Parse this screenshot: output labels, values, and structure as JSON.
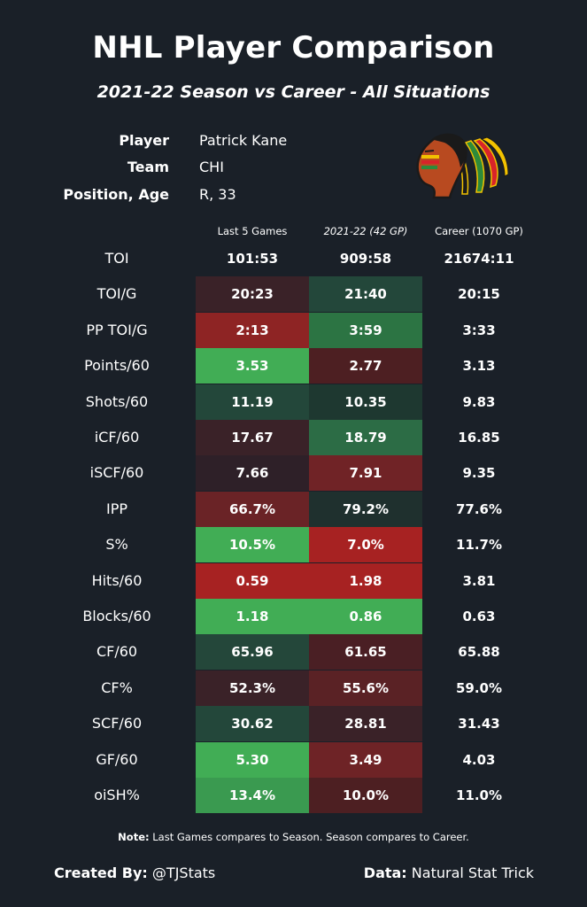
{
  "title": "NHL Player Comparison",
  "subtitle": "2021-22 Season vs Career - All Situations",
  "player_info": [
    {
      "label": "Player",
      "value": "Patrick Kane"
    },
    {
      "label": "Team",
      "value": "CHI"
    },
    {
      "label": "Position, Age",
      "value": "R, 33"
    }
  ],
  "logo_icon": "chicago-blackhawks-logo-icon",
  "columns": [
    "Last 5 Games",
    "2021-22 (42 GP)",
    "Career (1070 GP)"
  ],
  "rows": [
    {
      "label": "TOI",
      "values": [
        "101:53",
        "909:58",
        "21674:11"
      ],
      "colors": [
        "#1a2028",
        "#1a2028",
        "#1a2028"
      ]
    },
    {
      "label": "TOI/G",
      "values": [
        "20:23",
        "21:40",
        "20:15"
      ],
      "colors": [
        "#3a2228",
        "#23473a",
        "#1a2028"
      ]
    },
    {
      "label": "PP TOI/G",
      "values": [
        "2:13",
        "3:59",
        "3:33"
      ],
      "colors": [
        "#8e2424",
        "#2c7443",
        "#1a2028"
      ]
    },
    {
      "label": "Points/60",
      "values": [
        "3.53",
        "2.77",
        "3.13"
      ],
      "colors": [
        "#41ad55",
        "#4d1f22",
        "#1a2028"
      ]
    },
    {
      "label": "Shots/60",
      "values": [
        "11.19",
        "10.35",
        "9.83"
      ],
      "colors": [
        "#23473a",
        "#1e3830",
        "#1a2028"
      ]
    },
    {
      "label": "iCF/60",
      "values": [
        "17.67",
        "18.79",
        "16.85"
      ],
      "colors": [
        "#3a2228",
        "#2c6c45",
        "#1a2028"
      ]
    },
    {
      "label": "iSCF/60",
      "values": [
        "7.66",
        "7.91",
        "9.35"
      ],
      "colors": [
        "#2e2028",
        "#702326",
        "#1a2028"
      ]
    },
    {
      "label": "IPP",
      "values": [
        "66.7%",
        "79.2%",
        "77.6%"
      ],
      "colors": [
        "#6a2326",
        "#1f302e",
        "#1a2028"
      ]
    },
    {
      "label": "S%",
      "values": [
        "10.5%",
        "7.0%",
        "11.7%"
      ],
      "colors": [
        "#41ad55",
        "#a72222",
        "#1a2028"
      ]
    },
    {
      "label": "Hits/60",
      "values": [
        "0.59",
        "1.98",
        "3.81"
      ],
      "colors": [
        "#a72222",
        "#a72222",
        "#1a2028"
      ]
    },
    {
      "label": "Blocks/60",
      "values": [
        "1.18",
        "0.86",
        "0.63"
      ],
      "colors": [
        "#41ad55",
        "#41ad55",
        "#1a2028"
      ]
    },
    {
      "label": "CF/60",
      "values": [
        "65.96",
        "61.65",
        "65.88"
      ],
      "colors": [
        "#24473a",
        "#4a1f24",
        "#1a2028"
      ]
    },
    {
      "label": "CF%",
      "values": [
        "52.3%",
        "55.6%",
        "59.0%"
      ],
      "colors": [
        "#3a2228",
        "#5a2225",
        "#1a2028"
      ]
    },
    {
      "label": "SCF/60",
      "values": [
        "30.62",
        "28.81",
        "31.43"
      ],
      "colors": [
        "#23473a",
        "#3a2228",
        "#1a2028"
      ]
    },
    {
      "label": "GF/60",
      "values": [
        "5.30",
        "3.49",
        "4.03"
      ],
      "colors": [
        "#41ad55",
        "#6e2326",
        "#1a2028"
      ]
    },
    {
      "label": "oiSH%",
      "values": [
        "13.4%",
        "10.0%",
        "11.0%"
      ],
      "colors": [
        "#3a9a50",
        "#4d1f22",
        "#1a2028"
      ]
    }
  ],
  "note": {
    "label": "Note:",
    "text": "Last Games compares to Season. Season compares to Career."
  },
  "footer": {
    "created_label": "Created By:",
    "created_value": "@TJStats",
    "data_label": "Data:",
    "data_value": "Natural Stat Trick"
  }
}
